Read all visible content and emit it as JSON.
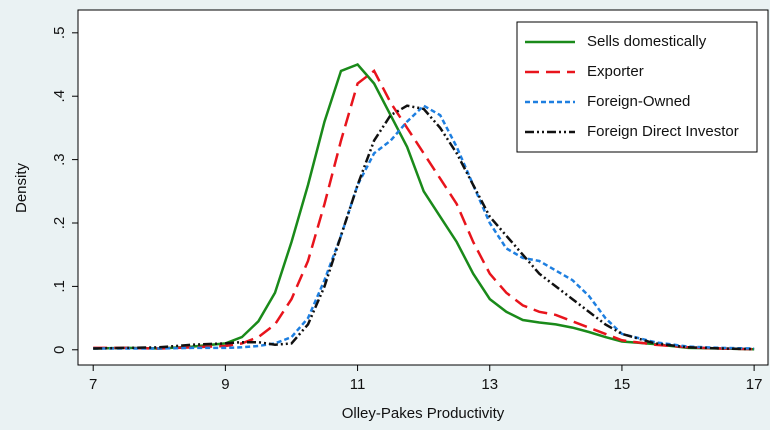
{
  "chart_data": {
    "type": "line",
    "x_label": "Olley-Pakes Productivity",
    "y_label": "Density",
    "x": [
      7,
      7.5,
      8,
      8.5,
      9,
      9.25,
      9.5,
      9.75,
      10,
      10.25,
      10.5,
      10.75,
      11,
      11.25,
      11.5,
      11.75,
      12,
      12.25,
      12.5,
      12.75,
      13,
      13.25,
      13.5,
      13.75,
      14,
      14.25,
      14.5,
      14.75,
      15,
      15.5,
      16,
      16.5,
      17
    ],
    "series": [
      {
        "name": "Sells domestically",
        "color": "#1a8a1a",
        "line_style": "solid",
        "values": [
          0.002,
          0.003,
          0.002,
          0.005,
          0.01,
          0.02,
          0.045,
          0.09,
          0.17,
          0.26,
          0.36,
          0.44,
          0.45,
          0.42,
          0.37,
          0.32,
          0.25,
          0.21,
          0.17,
          0.12,
          0.08,
          0.06,
          0.047,
          0.043,
          0.04,
          0.035,
          0.028,
          0.02,
          0.013,
          0.009,
          0.003,
          0.002,
          0.001
        ]
      },
      {
        "name": "Exporter",
        "color": "#e8141c",
        "line_style": "long-dash",
        "values": [
          0.003,
          0.003,
          0.002,
          0.004,
          0.006,
          0.01,
          0.02,
          0.04,
          0.08,
          0.14,
          0.23,
          0.33,
          0.42,
          0.44,
          0.39,
          0.35,
          0.31,
          0.27,
          0.23,
          0.17,
          0.12,
          0.09,
          0.07,
          0.06,
          0.055,
          0.045,
          0.035,
          0.025,
          0.015,
          0.008,
          0.004,
          0.002,
          0.001
        ]
      },
      {
        "name": "Foreign-Owned",
        "color": "#1e7fe0",
        "line_style": "short-dash",
        "values": [
          0.002,
          0.002,
          0.002,
          0.003,
          0.003,
          0.004,
          0.006,
          0.01,
          0.02,
          0.05,
          0.11,
          0.18,
          0.26,
          0.31,
          0.33,
          0.36,
          0.385,
          0.37,
          0.32,
          0.26,
          0.2,
          0.16,
          0.145,
          0.14,
          0.125,
          0.11,
          0.085,
          0.05,
          0.025,
          0.012,
          0.005,
          0.003,
          0.002
        ]
      },
      {
        "name": "Foreign Direct Investor",
        "color": "#111111",
        "line_style": "dash-dot",
        "values": [
          0.002,
          0.003,
          0.004,
          0.008,
          0.01,
          0.012,
          0.012,
          0.008,
          0.01,
          0.04,
          0.1,
          0.18,
          0.26,
          0.33,
          0.37,
          0.385,
          0.38,
          0.35,
          0.31,
          0.26,
          0.21,
          0.18,
          0.15,
          0.12,
          0.1,
          0.08,
          0.06,
          0.04,
          0.025,
          0.01,
          0.004,
          0.002,
          0.001
        ]
      }
    ],
    "xlim": [
      6.77,
      17.21
    ],
    "ylim": [
      -0.024,
      0.536
    ],
    "xticks": [
      7,
      9,
      11,
      13,
      15,
      17
    ],
    "yticks": [
      0,
      {
        "value": 0.1,
        "label": ".1"
      },
      {
        "value": 0.2,
        "label": ".2"
      },
      {
        "value": 0.3,
        "label": ".3"
      },
      {
        "value": 0.4,
        "label": ".4"
      },
      {
        "value": 0.5,
        "label": ".5"
      }
    ],
    "legend": "top-right"
  }
}
